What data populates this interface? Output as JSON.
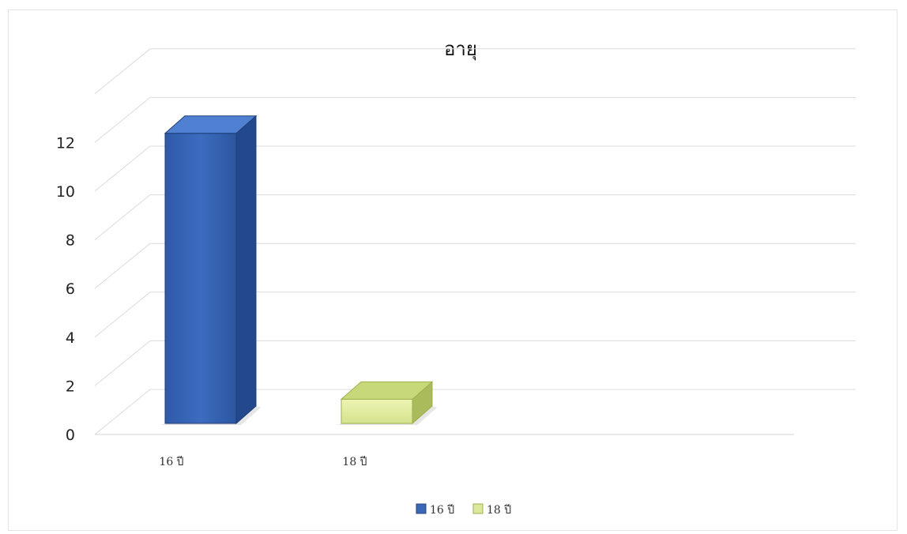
{
  "chart_data": {
    "type": "bar",
    "title": "อายุ",
    "categories": [
      "16 ปี",
      "18 ปี"
    ],
    "series": [
      {
        "name": "16 ปี",
        "color": "#3a68b7",
        "values": [
          12,
          null
        ]
      },
      {
        "name": "18 ปี",
        "color": "#d9e89a",
        "values": [
          null,
          1
        ]
      }
    ],
    "yticks": [
      "0",
      "2",
      "4",
      "6",
      "8",
      "10",
      "12"
    ],
    "ylim": [
      0,
      14
    ],
    "grid": true,
    "legend": "bottom-center",
    "style": "3d-column"
  }
}
